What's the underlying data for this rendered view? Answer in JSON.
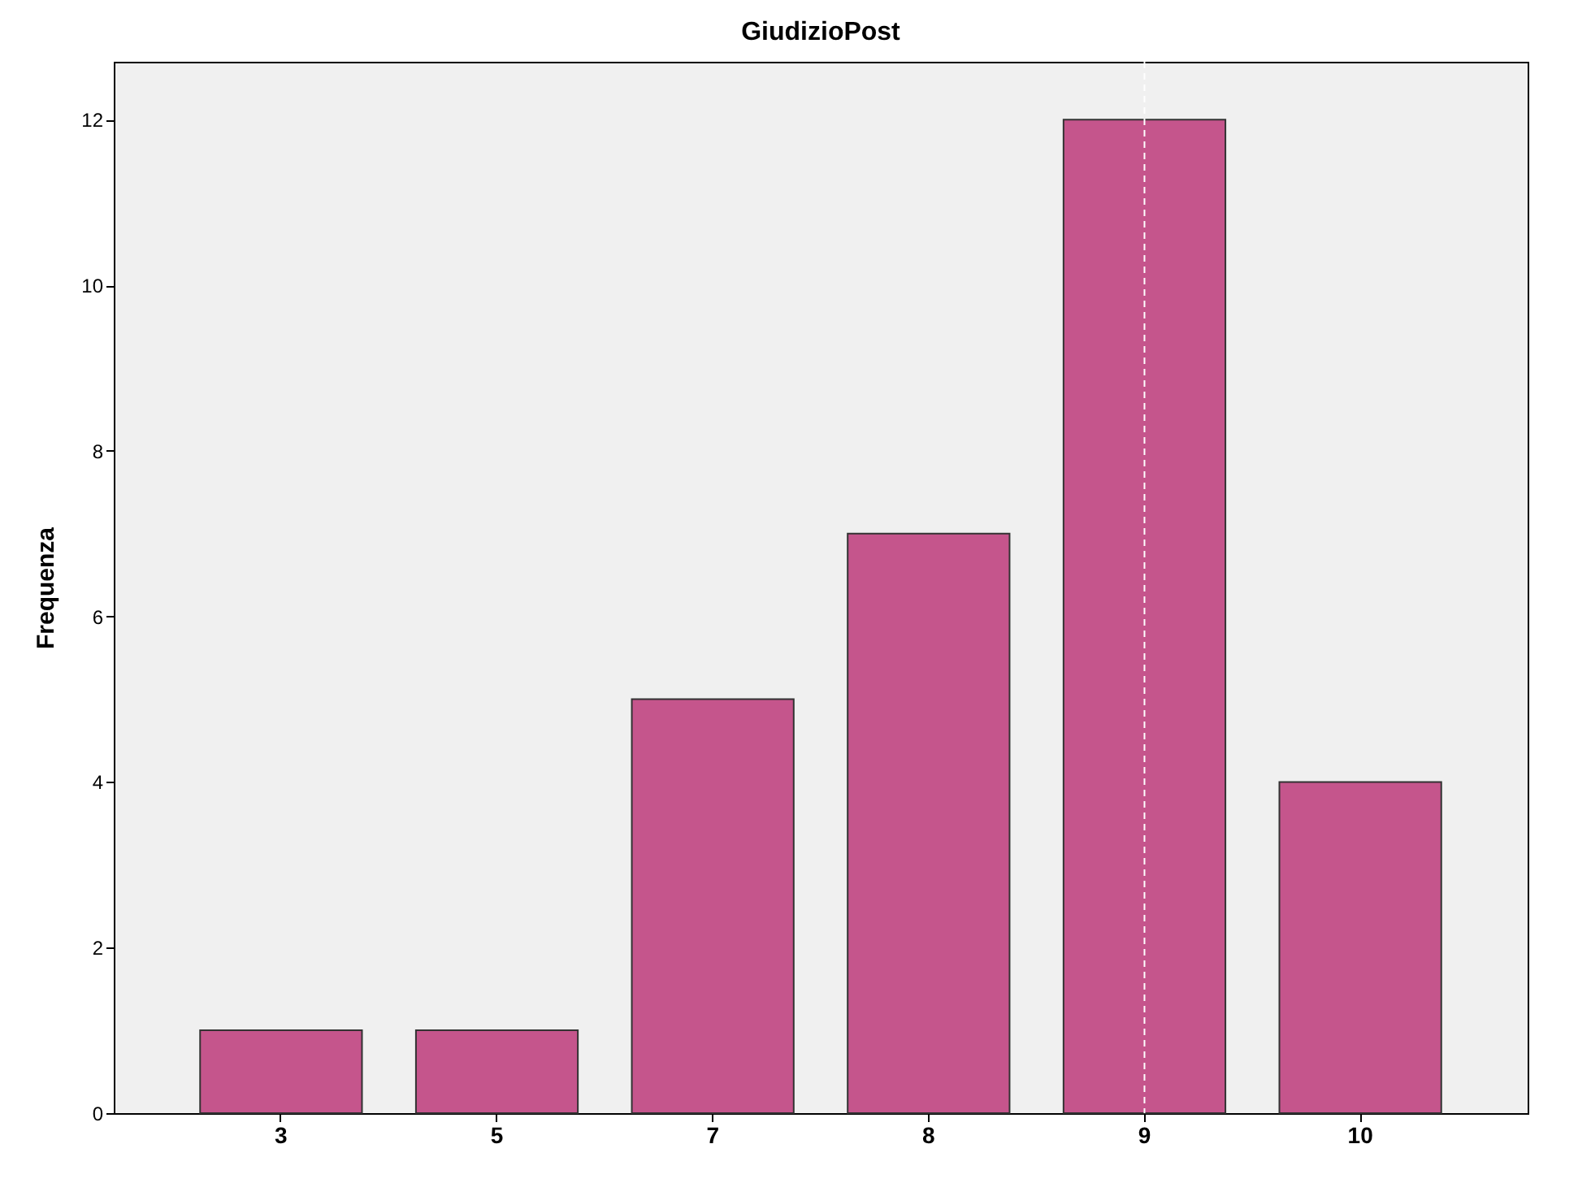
{
  "chart_data": {
    "type": "bar",
    "title": "GiudizioPost",
    "ylabel": "Frequenza",
    "categories": [
      "3",
      "5",
      "7",
      "8",
      "9",
      "10"
    ],
    "values": [
      1,
      1,
      5,
      7,
      12,
      4
    ],
    "color": "#c5558c",
    "ylim": [
      0,
      12.7
    ],
    "yticks": [
      0,
      2,
      4,
      6,
      8,
      10,
      12
    ],
    "grid": false,
    "ref_lines": [
      {
        "axis": "x",
        "value": "9",
        "color": "#ffffff",
        "line_style": "dashed"
      }
    ]
  }
}
